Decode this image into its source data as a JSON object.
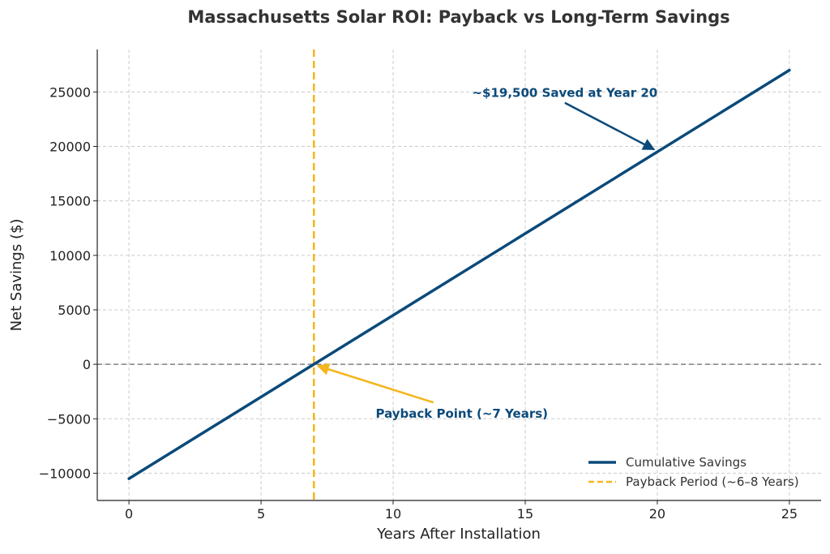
{
  "chart_data": {
    "type": "line",
    "title": "Massachusetts Solar ROI: Payback vs Long-Term Savings",
    "xlabel": "Years After Installation",
    "ylabel": "Net Savings ($)",
    "xlim": [
      -1.2,
      26.2
    ],
    "ylim": [
      -12500,
      28900
    ],
    "x_ticks": [
      0,
      5,
      10,
      15,
      20,
      25
    ],
    "y_ticks": [
      -10000,
      -5000,
      0,
      5000,
      10000,
      15000,
      20000,
      25000
    ],
    "x_tick_labels": [
      "0",
      "5",
      "10",
      "15",
      "20",
      "25"
    ],
    "y_tick_labels": [
      "−10000",
      "−5000",
      "0",
      "5000",
      "10000",
      "15000",
      "20000",
      "25000"
    ],
    "grid": true,
    "series": [
      {
        "name": "Cumulative Savings",
        "color": "#0b4a7a",
        "style": "solid",
        "x": [
          0,
          25
        ],
        "y": [
          -10500,
          27000
        ]
      }
    ],
    "vertical_lines": [
      {
        "name": "Payback Period (~6–8 Years)",
        "x": 7,
        "color": "#f5b51b",
        "style": "dashed"
      }
    ],
    "horizontal_lines": [
      {
        "y": 0,
        "color": "#808080",
        "style": "dashed"
      }
    ],
    "annotations": [
      {
        "text": "~$19,500 Saved at Year 20",
        "point": [
          20,
          19500
        ],
        "text_pos": [
          16.5,
          24900
        ],
        "color": "#0b4a7a",
        "arrow_color": "#0b4a7a"
      },
      {
        "text": "Payback Point (~7 Years)",
        "point": [
          7,
          0
        ],
        "text_pos": [
          12.6,
          -4550
        ],
        "color": "#0b4a7a",
        "arrow_color": "#f5b51b"
      }
    ],
    "legend": {
      "position": "bottom-right",
      "entries": [
        {
          "label": "Cumulative Savings",
          "color": "#0b4a7a",
          "style": "solid"
        },
        {
          "label": "Payback Period (~6–8 Years)",
          "color": "#f5b51b",
          "style": "dashed"
        }
      ]
    }
  }
}
